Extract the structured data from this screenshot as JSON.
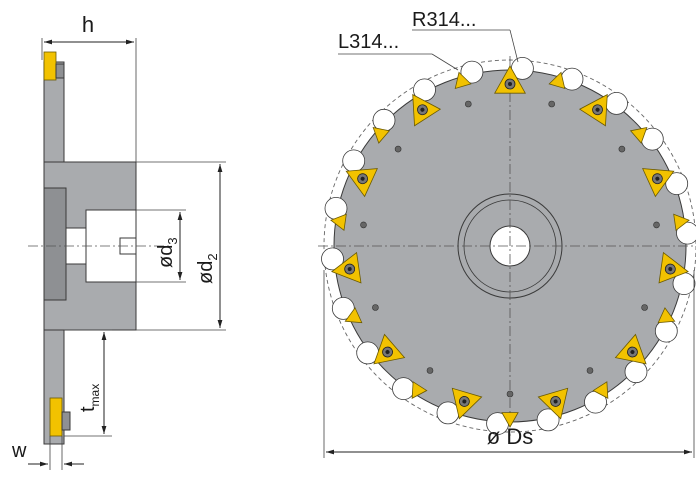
{
  "labels": {
    "h": "h",
    "d3_prefix": "ød",
    "d3_sub": "3",
    "d2_prefix": "ød",
    "d2_sub": "2",
    "t_main": "t",
    "t_sub": "max",
    "w": "w",
    "ds": "ø Ds",
    "r314": "R314...",
    "l314": "L314..."
  },
  "colors": {
    "body": "#a9abae",
    "insert": "#f2c200",
    "background": "#ffffff"
  }
}
